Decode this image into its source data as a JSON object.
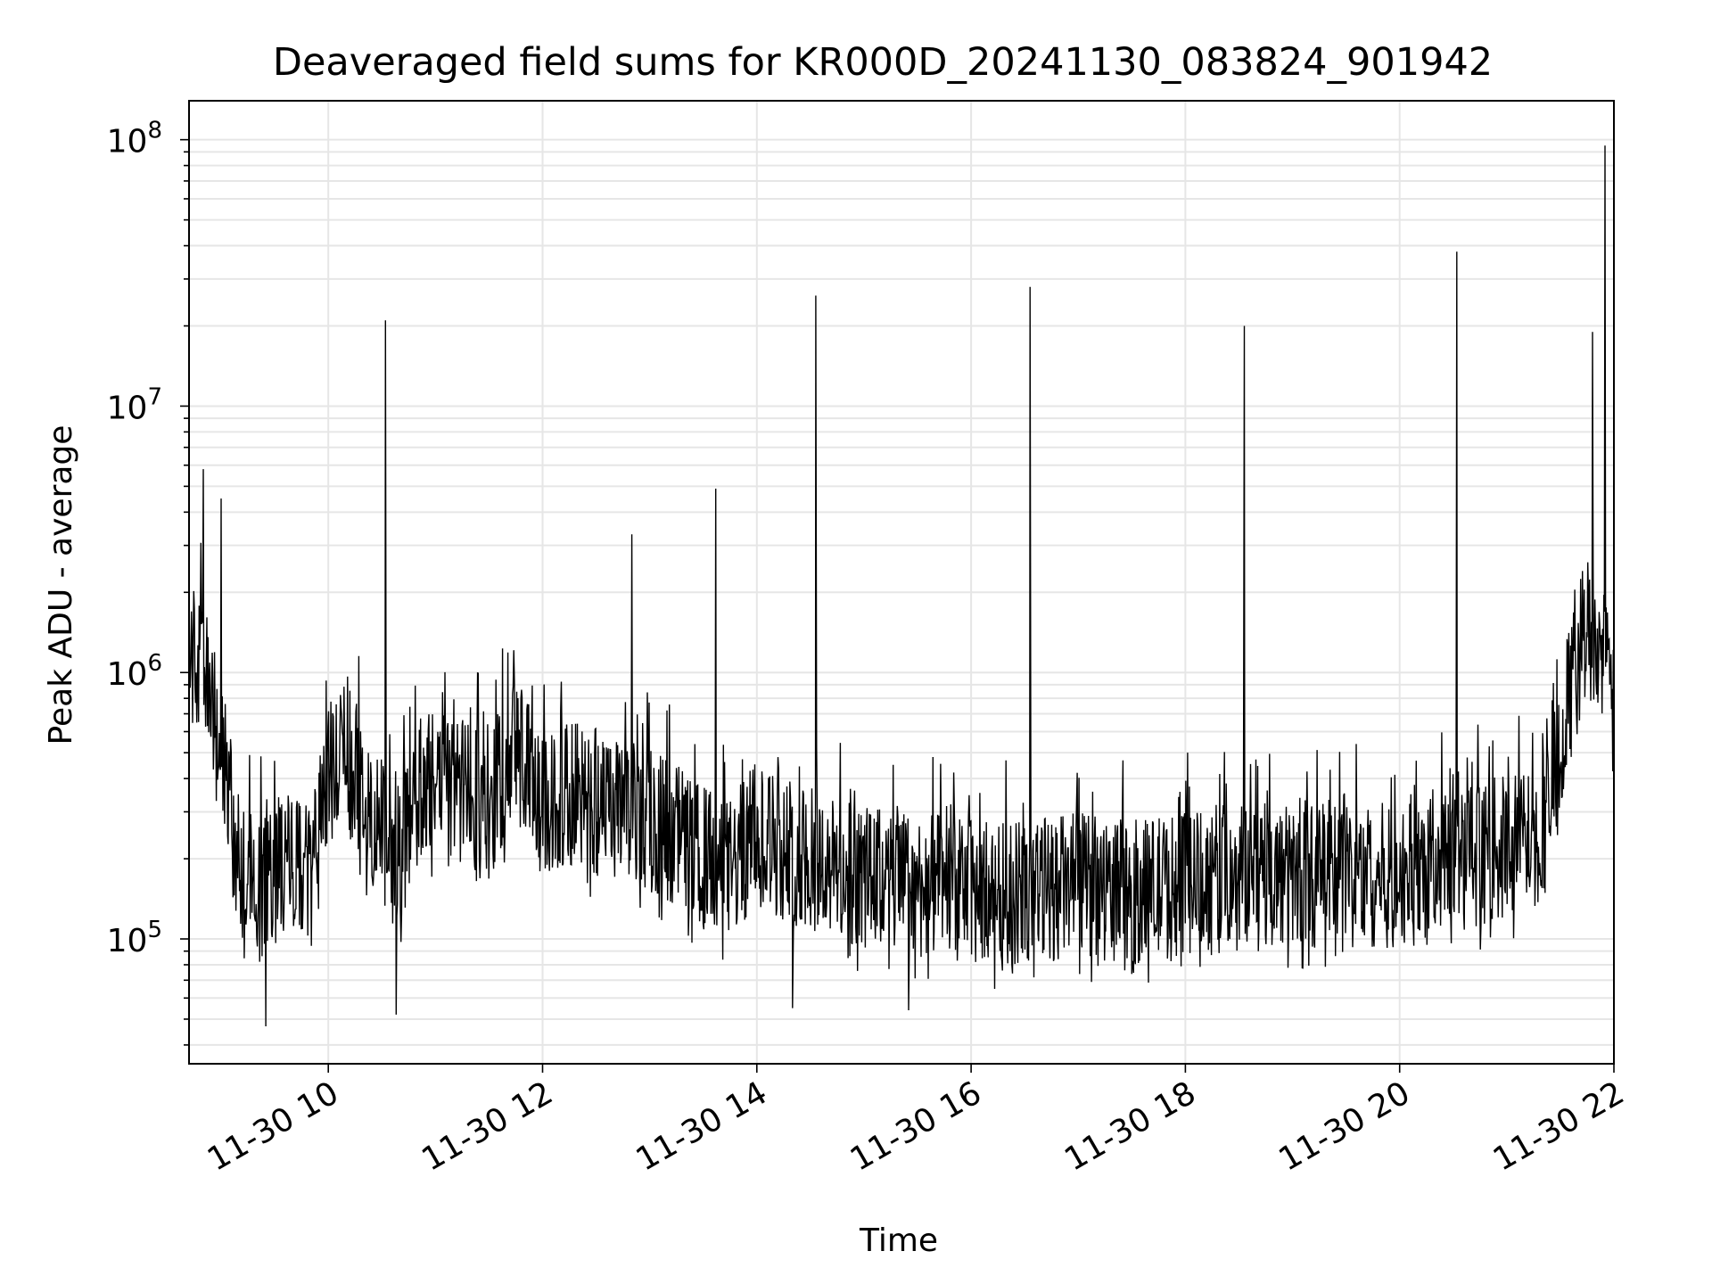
{
  "chart_data": {
    "type": "line",
    "title": "Deaveraged field sums for KR000D_20241130_083824_901942",
    "xlabel": "Time",
    "ylabel": "Peak ADU - average",
    "x_is_time": true,
    "y_scale": "log",
    "xlim": [
      "2024-11-30 08:42",
      "2024-11-30 22:00"
    ],
    "ylim": [
      34000,
      140000000
    ],
    "x_tick_labels": [
      {
        "t": "2024-11-30 10:00",
        "label": "11-30 10"
      },
      {
        "t": "2024-11-30 12:00",
        "label": "11-30 12"
      },
      {
        "t": "2024-11-30 14:00",
        "label": "11-30 14"
      },
      {
        "t": "2024-11-30 16:00",
        "label": "11-30 16"
      },
      {
        "t": "2024-11-30 18:00",
        "label": "11-30 18"
      },
      {
        "t": "2024-11-30 20:00",
        "label": "11-30 20"
      },
      {
        "t": "2024-11-30 22:00",
        "label": "11-30 22"
      }
    ],
    "y_tick_labels": [
      {
        "v": 100000,
        "base": "10",
        "exp": "5"
      },
      {
        "v": 1000000,
        "base": "10",
        "exp": "6"
      },
      {
        "v": 10000000,
        "base": "10",
        "exp": "7"
      },
      {
        "v": 100000000,
        "base": "10",
        "exp": "8"
      }
    ],
    "grid": true,
    "line_color": "#000000",
    "series": [
      {
        "x": [
          "2024-11-30 08:42",
          "2024-11-30 08:50",
          "2024-11-30 09:00",
          "2024-11-30 09:10",
          "2024-11-30 09:20",
          "2024-11-30 09:30",
          "2024-11-30 09:40",
          "2024-11-30 09:50",
          "2024-11-30 10:00",
          "2024-11-30 10:10",
          "2024-11-30 10:20",
          "2024-11-30 10:30",
          "2024-11-30 10:40",
          "2024-11-30 10:50",
          "2024-11-30 11:00",
          "2024-11-30 11:15",
          "2024-11-30 11:30",
          "2024-11-30 11:45",
          "2024-11-30 12:00",
          "2024-11-30 12:15",
          "2024-11-30 12:30",
          "2024-11-30 12:45",
          "2024-11-30 13:00",
          "2024-11-30 13:15",
          "2024-11-30 13:30",
          "2024-11-30 13:45",
          "2024-11-30 14:00",
          "2024-11-30 14:15",
          "2024-11-30 14:30",
          "2024-11-30 14:45",
          "2024-11-30 15:00",
          "2024-11-30 15:30",
          "2024-11-30 16:00",
          "2024-11-30 16:30",
          "2024-11-30 17:00",
          "2024-11-30 17:30",
          "2024-11-30 18:00",
          "2024-11-30 18:30",
          "2024-11-30 19:00",
          "2024-11-30 19:30",
          "2024-11-30 20:00",
          "2024-11-30 20:30",
          "2024-11-30 21:00",
          "2024-11-30 21:20",
          "2024-11-30 21:30",
          "2024-11-30 21:40",
          "2024-11-30 21:50",
          "2024-11-30 22:00"
        ],
        "y": [
          1200000,
          1000000,
          500000,
          200000,
          150000,
          180000,
          200000,
          160000,
          400000,
          500000,
          350000,
          250000,
          200000,
          350000,
          400000,
          350000,
          300000,
          550000,
          300000,
          350000,
          300000,
          300000,
          280000,
          250000,
          200000,
          180000,
          250000,
          220000,
          200000,
          180000,
          170000,
          160000,
          150000,
          150000,
          160000,
          150000,
          160000,
          180000,
          170000,
          180000,
          170000,
          200000,
          220000,
          250000,
          500000,
          1400000,
          1500000,
          700000
        ]
      }
    ],
    "spikes": [
      {
        "x": "2024-11-30 08:50",
        "y": 5800000
      },
      {
        "x": "2024-11-30 09:00",
        "y": 4500000
      },
      {
        "x": "2024-11-30 10:32",
        "y": 21000000
      },
      {
        "x": "2024-11-30 12:50",
        "y": 3300000
      },
      {
        "x": "2024-11-30 13:37",
        "y": 4900000
      },
      {
        "x": "2024-11-30 14:33",
        "y": 26000000
      },
      {
        "x": "2024-11-30 16:33",
        "y": 28000000
      },
      {
        "x": "2024-11-30 18:33",
        "y": 20000000
      },
      {
        "x": "2024-11-30 20:32",
        "y": 38000000
      },
      {
        "x": "2024-11-30 21:48",
        "y": 19000000
      },
      {
        "x": "2024-11-30 21:55",
        "y": 95000000
      }
    ],
    "noise_upper_ratio": 2.6,
    "noise_lower_ratio": 0.55,
    "dips": [
      {
        "x": "2024-11-30 09:25",
        "y": 47000
      },
      {
        "x": "2024-11-30 10:38",
        "y": 52000
      },
      {
        "x": "2024-11-30 14:20",
        "y": 55000
      },
      {
        "x": "2024-11-30 15:25",
        "y": 54000
      }
    ]
  }
}
